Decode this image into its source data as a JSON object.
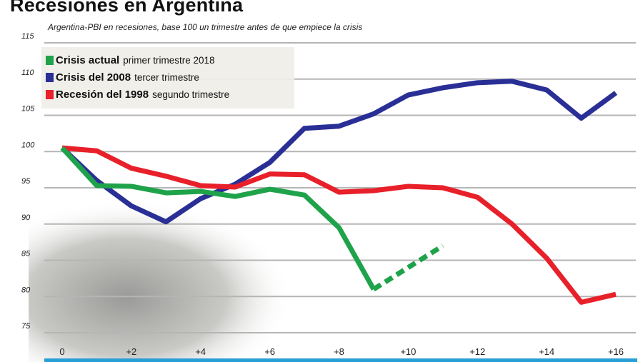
{
  "title": "Recesiones en Argentina",
  "chart_data": {
    "type": "line",
    "title": "Recesiones en Argentina",
    "subtitle": "Argentina-PBI en recesiones, base 100 un trimestre antes de que empiece la crisis",
    "xlabel": "",
    "ylabel": "",
    "ylim": [
      75,
      115
    ],
    "xlim": [
      0,
      16
    ],
    "y_ticks": [
      "115",
      "110",
      "105",
      "100",
      "95",
      "90",
      "85",
      "80",
      "75"
    ],
    "x_ticks": [
      "0",
      "+2",
      "+4",
      "+6",
      "+8",
      "+10",
      "+12",
      "+14",
      "+16"
    ],
    "grid": true,
    "legend_position": "top-left",
    "series": [
      {
        "name": "Crisis actual",
        "detail": "primer trimestre 2018",
        "color": "#1fa34a",
        "x": [
          0,
          1,
          2,
          3,
          4,
          5,
          6,
          7,
          8,
          9
        ],
        "values": [
          100.5,
          95.3,
          95.2,
          94.3,
          94.5,
          93.8,
          94.8,
          94.0,
          89.5,
          81.0
        ],
        "projection": {
          "x": [
            9,
            11
          ],
          "values": [
            81.0,
            87.0
          ],
          "style": "dashed"
        }
      },
      {
        "name": "Crisis del 2008",
        "detail": "tercer trimestre",
        "color": "#2a2f96",
        "x": [
          0,
          1,
          2,
          3,
          4,
          5,
          6,
          7,
          8,
          9,
          10,
          11,
          12,
          13,
          14,
          15,
          16
        ],
        "values": [
          100.5,
          96.0,
          92.5,
          90.3,
          93.5,
          95.5,
          98.5,
          103.2,
          103.5,
          105.2,
          107.8,
          108.8,
          109.5,
          109.7,
          108.5,
          104.6,
          108.1
        ]
      },
      {
        "name": "Recesión del 1998",
        "detail": "segundo trimestre",
        "color": "#e8202a",
        "x": [
          0,
          1,
          2,
          3,
          4,
          5,
          6,
          7,
          8,
          9,
          10,
          11,
          12,
          13,
          14,
          15,
          16
        ],
        "values": [
          100.5,
          100.1,
          97.7,
          96.6,
          95.3,
          95.1,
          96.9,
          96.8,
          94.4,
          94.6,
          95.2,
          95.0,
          93.7,
          90.0,
          85.3,
          79.2,
          80.3
        ]
      }
    ]
  },
  "colors": {
    "axis_bar": "#2a9fd6",
    "grid": "#b5b5b5"
  }
}
